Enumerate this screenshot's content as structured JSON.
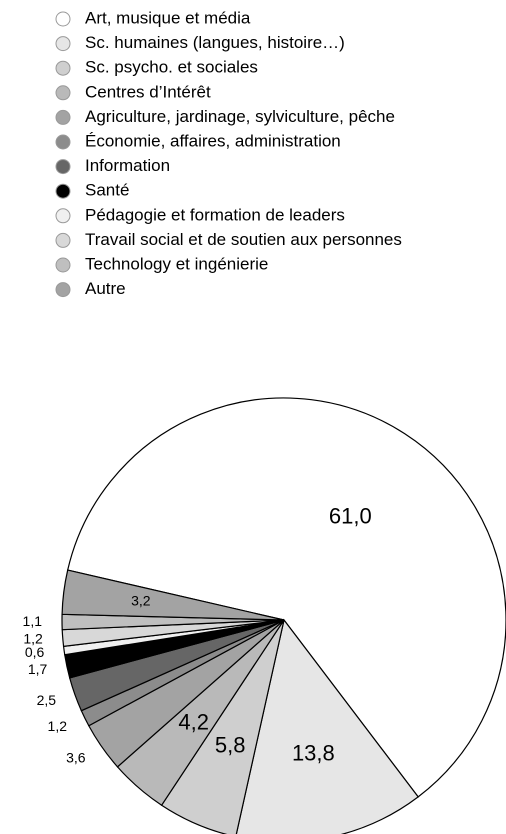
{
  "chart_data": {
    "type": "pie",
    "categories": [
      "Art, musique et média",
      "Sc. humaines (langues, histoire…)",
      "Sc. psycho. et sociales",
      "Centres d’Intérêt",
      "Agriculture, jardinage, sylviculture, pêche",
      "Économie, affaires, administration",
      "Information",
      "Santé",
      "Pédagogie et formation de leaders",
      "Travail social et de soutien aux personnes",
      "Technology et ingénierie",
      "Autre"
    ],
    "values": [
      61.0,
      13.8,
      5.8,
      4.2,
      3.6,
      1.2,
      2.5,
      1.7,
      0.6,
      1.2,
      1.1,
      3.2
    ],
    "value_labels": [
      "61,0",
      "13,8",
      "5,8",
      "4,2",
      "3,6",
      "1,2",
      "2,5",
      "1,7",
      "0,6",
      "1,2",
      "1,1",
      "3,2"
    ],
    "colors": [
      "#ffffff",
      "#e6e6e6",
      "#cfcfcf",
      "#b9b9b9",
      "#a3a3a3",
      "#8c8c8c",
      "#666666",
      "#000000",
      "#f0f0f0",
      "#d8d8d8",
      "#bfbfbf",
      "#a3a3a3"
    ]
  }
}
